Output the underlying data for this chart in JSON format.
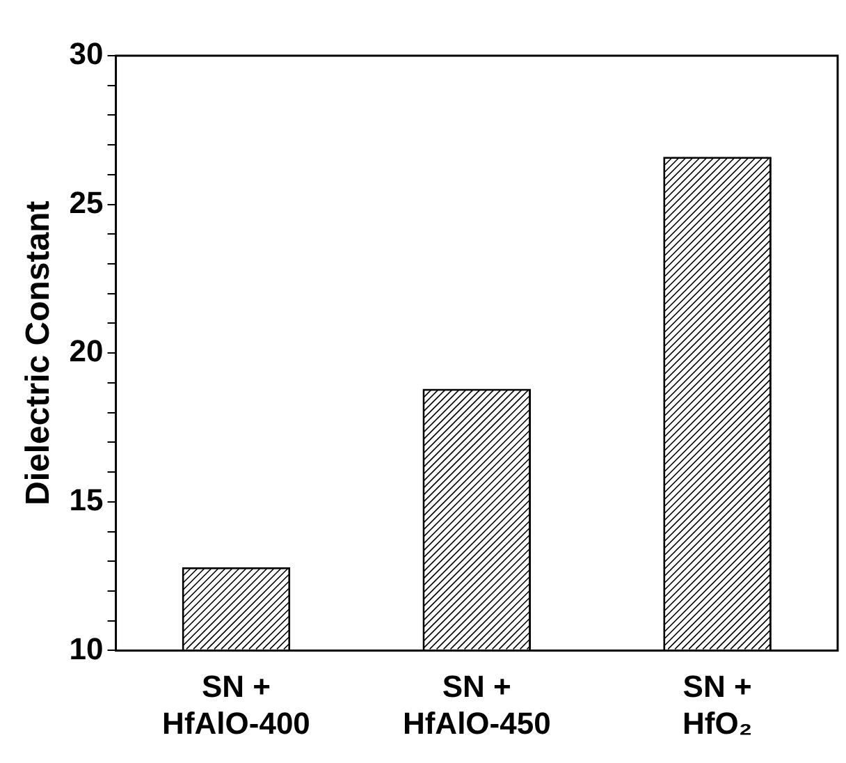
{
  "chart_data": {
    "type": "bar",
    "ylabel": "Dielectric Constant",
    "categories": [
      "SN +\nHfAlO-400",
      "SN +\nHfAlO-450",
      "SN +\nHfO₂"
    ],
    "values": [
      12.8,
      18.8,
      26.6
    ],
    "color": "#ffffff",
    "ylim": [
      10,
      30
    ],
    "yticks": [
      10,
      {
        "value": 11,
        "label": null
      },
      {
        "value": 12,
        "label": null
      },
      {
        "value": 13,
        "label": null
      },
      {
        "value": 14,
        "label": null
      },
      15,
      {
        "value": 16,
        "label": null
      },
      {
        "value": 17,
        "label": null
      },
      {
        "value": 18,
        "label": null
      },
      {
        "value": 19,
        "label": null
      },
      20,
      {
        "value": 21,
        "label": null
      },
      {
        "value": 22,
        "label": null
      },
      {
        "value": 23,
        "label": null
      },
      {
        "value": 24,
        "label": null
      },
      25,
      {
        "value": 26,
        "label": null
      },
      {
        "value": 27,
        "label": null
      },
      {
        "value": 28,
        "label": null
      },
      {
        "value": 29,
        "label": null
      },
      30
    ],
    "grid": false,
    "legend": false
  }
}
